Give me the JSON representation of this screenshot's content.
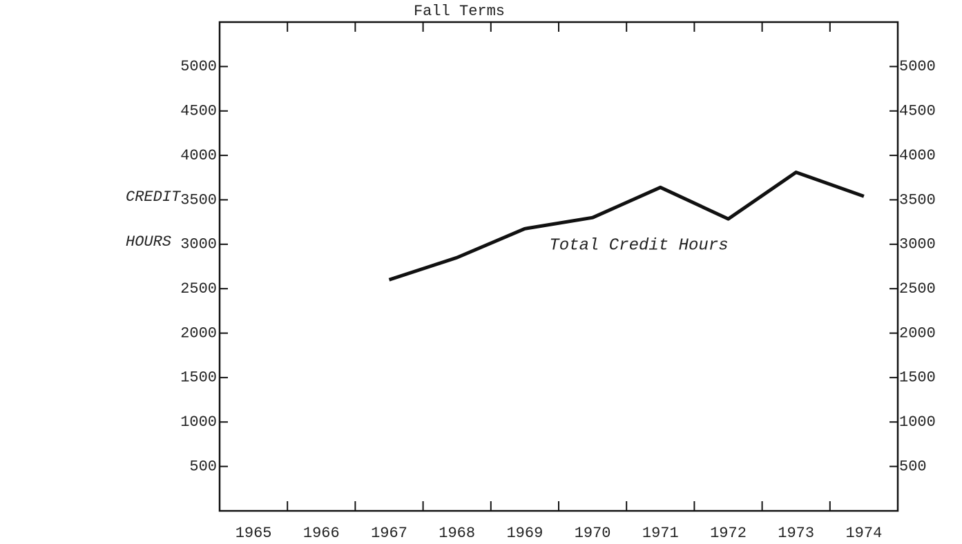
{
  "chart_data": {
    "type": "line",
    "title": "Fall Terms",
    "ylabel": [
      "CREDIT",
      "HOURS"
    ],
    "annotation": "Total Credit Hours",
    "categories": [
      "1965",
      "1966",
      "1967",
      "1968",
      "1969",
      "1970",
      "1971",
      "1972",
      "1973",
      "1974"
    ],
    "series": [
      {
        "name": "Total Credit Hours",
        "color": "#111111",
        "values": [
          null,
          null,
          2600,
          2850,
          3175,
          3300,
          3640,
          3285,
          3810,
          3540
        ]
      }
    ],
    "ylim": [
      0,
      5500
    ],
    "yticks": [
      500,
      1000,
      1500,
      2000,
      2500,
      3000,
      3500,
      4000,
      4500,
      5000
    ],
    "y2lim": [
      0,
      5500
    ],
    "y2ticks": [
      500,
      1000,
      1500,
      2000,
      2500,
      3000,
      3500,
      4000,
      4500,
      5000
    ],
    "grid": false
  }
}
